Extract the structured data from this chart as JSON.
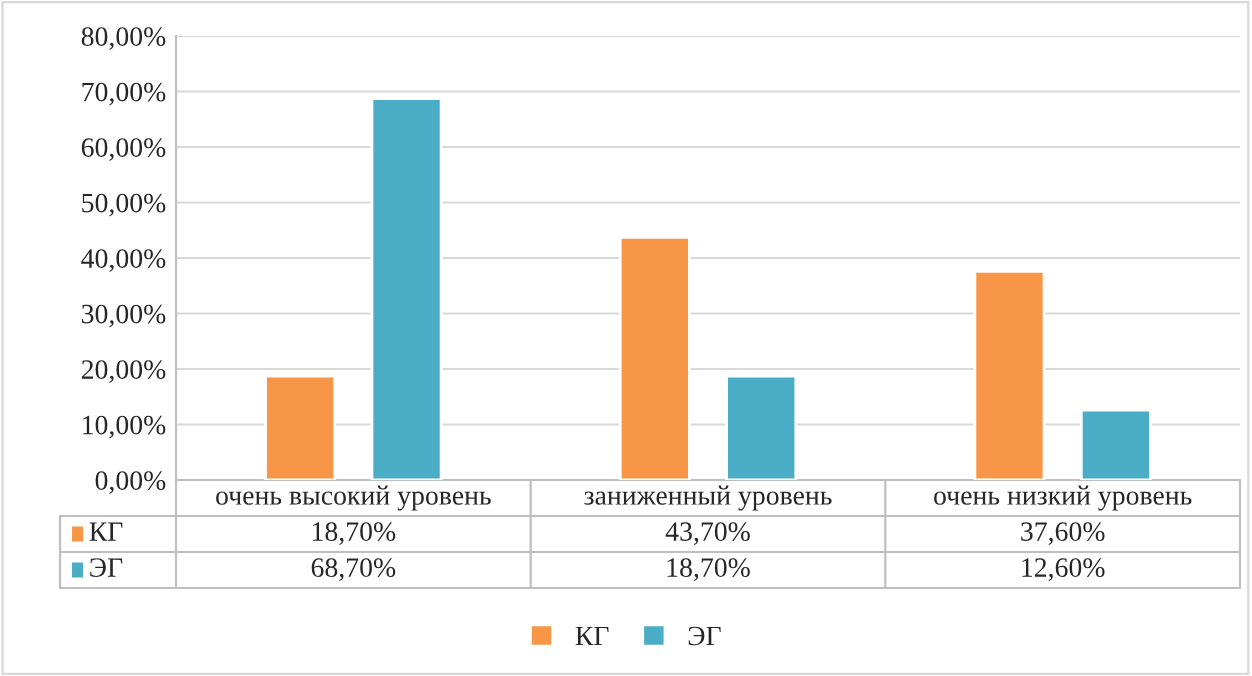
{
  "chart_data": {
    "type": "bar",
    "categories": [
      "очень высокий уровень",
      "заниженный уровень",
      "очень низкий уровень"
    ],
    "series": [
      {
        "name": "КГ",
        "color": "#f79646",
        "values": [
          18.7,
          43.7,
          37.6
        ],
        "value_labels": [
          "18,70%",
          "43,70%",
          "37,60%"
        ]
      },
      {
        "name": "ЭГ",
        "color": "#4bacc6",
        "values": [
          68.7,
          18.7,
          12.6
        ],
        "value_labels": [
          "68,70%",
          "18,70%",
          "12,60%"
        ]
      }
    ],
    "ylim": [
      0,
      80
    ],
    "yticks": [
      {
        "value": 0,
        "label": "0,00%"
      },
      {
        "value": 10,
        "label": "10,00%"
      },
      {
        "value": 20,
        "label": "20,00%"
      },
      {
        "value": 30,
        "label": "30,00%"
      },
      {
        "value": 40,
        "label": "40,00%"
      },
      {
        "value": 50,
        "label": "50,00%"
      },
      {
        "value": 60,
        "label": "60,00%"
      },
      {
        "value": 70,
        "label": "70,00%"
      },
      {
        "value": 80,
        "label": "80,00%"
      }
    ],
    "grid": "y",
    "legend": "bottom"
  }
}
